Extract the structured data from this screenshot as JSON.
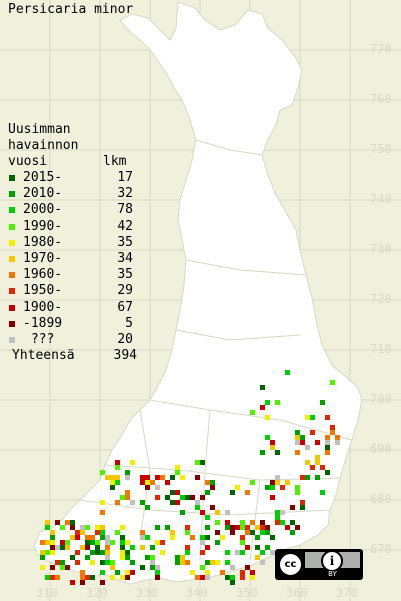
{
  "title": "Persicaria minor",
  "legend": {
    "header": [
      "Uusimman",
      "havainnon",
      "vuosi"
    ],
    "count_header": "lkm",
    "items": [
      {
        "label": "2015-",
        "count": "17",
        "color": "#006400"
      },
      {
        "label": "2010-",
        "count": "32",
        "color": "#00a000"
      },
      {
        "label": "2000-",
        "count": "78",
        "color": "#00d000"
      },
      {
        "label": "1990-",
        "count": "42",
        "color": "#50f000"
      },
      {
        "label": "1980-",
        "count": "35",
        "color": "#f0f000"
      },
      {
        "label": "1970-",
        "count": "34",
        "color": "#f0c800"
      },
      {
        "label": "1960-",
        "count": "35",
        "color": "#f07800"
      },
      {
        "label": "1950-",
        "count": "29",
        "color": "#e02800"
      },
      {
        "label": "1900-",
        "count": "67",
        "color": "#c80000"
      },
      {
        "label": "-1899",
        "count": "5",
        "color": "#800000"
      },
      {
        "label": " ???",
        "count": "20",
        "color": "#c0c0c0"
      }
    ],
    "total_label": "Yhteensä",
    "total_count": "394"
  },
  "grid_y_labels": [
    "770",
    "760",
    "750",
    "740",
    "730",
    "720",
    "710",
    "700",
    "690",
    "680",
    "670"
  ],
  "grid_x_labels": [
    "310",
    "320",
    "330",
    "340",
    "350",
    "360",
    "370"
  ],
  "license": {
    "cc": "cc",
    "by": "BY"
  }
}
